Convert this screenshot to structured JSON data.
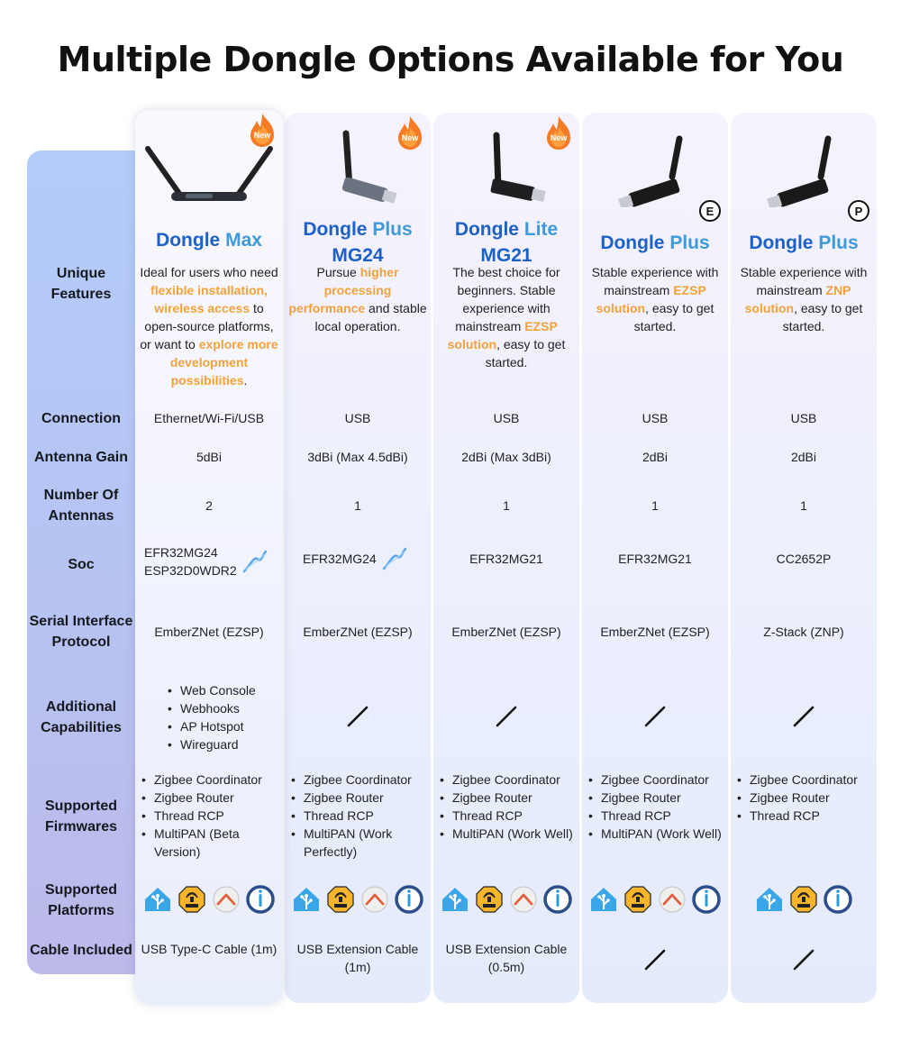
{
  "title": "Multiple Dongle Options Available for You",
  "colors": {
    "accent_blue": "#1c60c8",
    "highlight_orange": "#f2a23a",
    "label_column": "#b7c3f1"
  },
  "row_labels": {
    "features": "Unique Features",
    "connection": "Connection",
    "antenna_gain": "Antenna Gain",
    "antennas": "Number Of Antennas",
    "soc": "Soc",
    "serial": "Serial Interface Protocol",
    "capabilities": "Additional Capabilities",
    "firmwares": "Supported Firmwares",
    "platforms": "Supported Platforms",
    "cable": "Cable Included"
  },
  "badge_new": "New",
  "platform_icons": [
    "home-assistant-icon",
    "mqtt-icon",
    "openhab-icon",
    "iobroker-icon"
  ],
  "products": [
    {
      "name_main": "Dongle",
      "name_sub": "Max",
      "name_line2": "",
      "is_new": true,
      "variant": "",
      "features": [
        {
          "t": "Ideal for users who need ",
          "h": false
        },
        {
          "t": "flexible installation, wireless access",
          "h": true
        },
        {
          "t": " to open-source platforms, or want to ",
          "h": false
        },
        {
          "t": "explore more development possibilities",
          "h": true
        },
        {
          "t": ".",
          "h": false
        }
      ],
      "connection": "Ethernet/Wi-Fi/USB",
      "antenna_gain": "5dBi",
      "antennas": "2",
      "soc_line1": "EFR32MG24",
      "soc_line2": "ESP32D0WDR2",
      "serial": "EmberZNet (EZSP)",
      "capabilities": [
        "Web Console",
        "Webhooks",
        "AP Hotspot",
        "Wireguard"
      ],
      "firmwares": [
        "Zigbee Coordinator",
        "Zigbee Router",
        "Thread RCP",
        "MultiPAN (Beta Version)"
      ],
      "cable": "USB Type-C Cable (1m)"
    },
    {
      "name_main": "Dongle",
      "name_sub": "Plus",
      "name_line2": "MG24",
      "is_new": true,
      "variant": "",
      "features": [
        {
          "t": "Pursue ",
          "h": false
        },
        {
          "t": "higher processing performance",
          "h": true
        },
        {
          "t": " and stable local operation.",
          "h": false
        }
      ],
      "connection": "USB",
      "antenna_gain": "3dBi (Max 4.5dBi)",
      "antennas": "1",
      "soc_line1": "EFR32MG24",
      "soc_line2": "",
      "serial": "EmberZNet (EZSP)",
      "capabilities": [],
      "firmwares": [
        "Zigbee Coordinator",
        "Zigbee Router",
        "Thread RCP",
        "MultiPAN (Work Perfectly)"
      ],
      "cable": "USB Extension Cable (1m)"
    },
    {
      "name_main": "Dongle",
      "name_sub": "Lite",
      "name_line2": "MG21",
      "is_new": true,
      "variant": "",
      "features": [
        {
          "t": "The best choice for beginners. Stable experience with mainstream ",
          "h": false
        },
        {
          "t": "EZSP solution",
          "h": true
        },
        {
          "t": ", easy to get started.",
          "h": false
        }
      ],
      "connection": "USB",
      "antenna_gain": "2dBi (Max 3dBi)",
      "antennas": "1",
      "soc_line1": "EFR32MG21",
      "soc_line2": "",
      "serial": "EmberZNet (EZSP)",
      "capabilities": [],
      "firmwares": [
        "Zigbee Coordinator",
        "Zigbee Router",
        "Thread RCP",
        "MultiPAN (Work Well)"
      ],
      "cable": "USB Extension Cable (0.5m)"
    },
    {
      "name_main": "Dongle",
      "name_sub": "Plus",
      "name_line2": "",
      "is_new": false,
      "variant": "E",
      "features": [
        {
          "t": "Stable experience with mainstream ",
          "h": false
        },
        {
          "t": "EZSP solution",
          "h": true
        },
        {
          "t": ", easy to get started.",
          "h": false
        }
      ],
      "connection": "USB",
      "antenna_gain": "2dBi",
      "antennas": "1",
      "soc_line1": "EFR32MG21",
      "soc_line2": "",
      "serial": "EmberZNet (EZSP)",
      "capabilities": [],
      "firmwares": [
        "Zigbee Coordinator",
        "Zigbee Router",
        "Thread RCP",
        "MultiPAN (Work Well)"
      ],
      "cable": ""
    },
    {
      "name_main": "Dongle",
      "name_sub": "Plus",
      "name_line2": "",
      "is_new": false,
      "variant": "P",
      "features": [
        {
          "t": "Stable experience with mainstream ",
          "h": false
        },
        {
          "t": "ZNP solution",
          "h": true
        },
        {
          "t": ", easy to get started.",
          "h": false
        }
      ],
      "connection": "USB",
      "antenna_gain": "2dBi",
      "antennas": "1",
      "soc_line1": "CC2652P",
      "soc_line2": "",
      "serial": "Z-Stack (ZNP)",
      "capabilities": [],
      "firmwares": [
        "Zigbee Coordinator",
        "Zigbee Router",
        "Thread RCP"
      ],
      "cable": ""
    }
  ]
}
